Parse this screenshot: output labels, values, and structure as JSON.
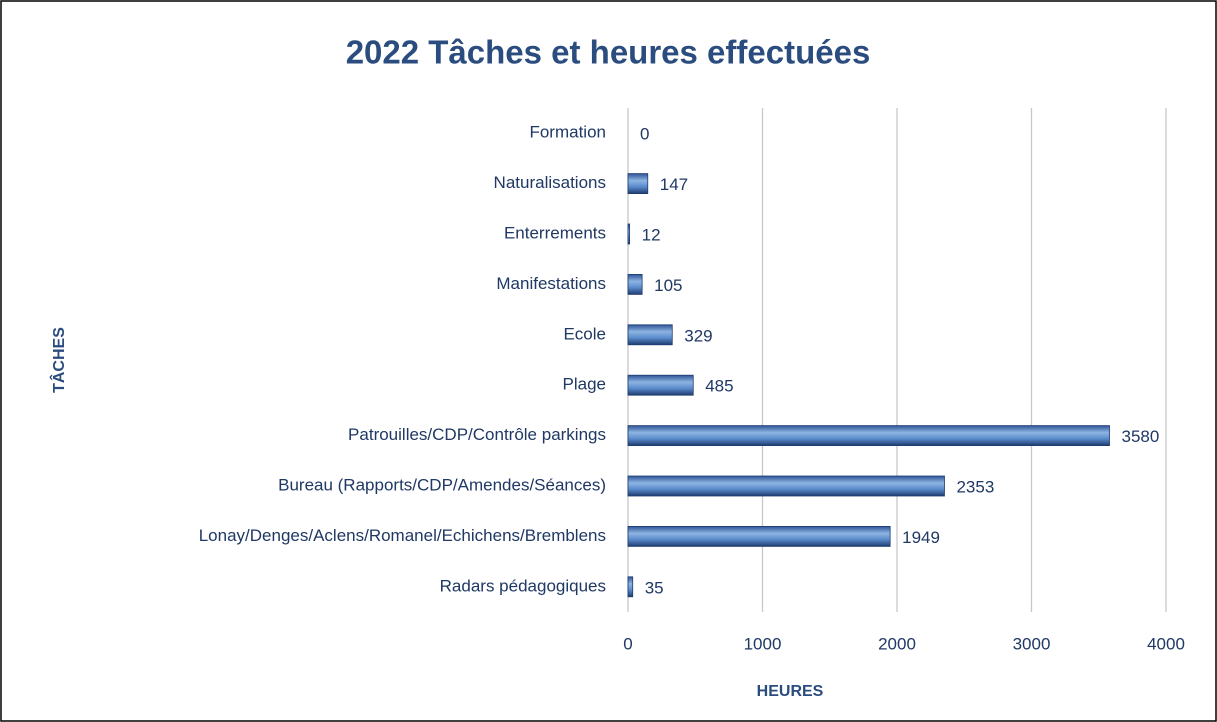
{
  "chart_data": {
    "type": "bar",
    "orientation": "horizontal",
    "title": "2022 Tâches et heures effectuées",
    "x_label": "HEURES",
    "y_label": "TÂCHES",
    "categories": [
      "Formation",
      "Naturalisations",
      "Enterrements",
      "Manifestations",
      "Ecole",
      "Plage",
      "Patrouilles/CDP/Contrôle parkings",
      "Bureau (Rapports/CDP/Amendes/Séances)",
      "Lonay/Denges/Aclens/Romanel/Echichens/Bremblens",
      "Radars pédagogiques"
    ],
    "values": [
      0,
      147,
      12,
      105,
      329,
      485,
      3580,
      2353,
      1949,
      35
    ],
    "color": "#4f81bd",
    "xlim": [
      0,
      4000
    ],
    "xticks": [
      0,
      1000,
      2000,
      3000,
      4000
    ],
    "grid": true
  }
}
